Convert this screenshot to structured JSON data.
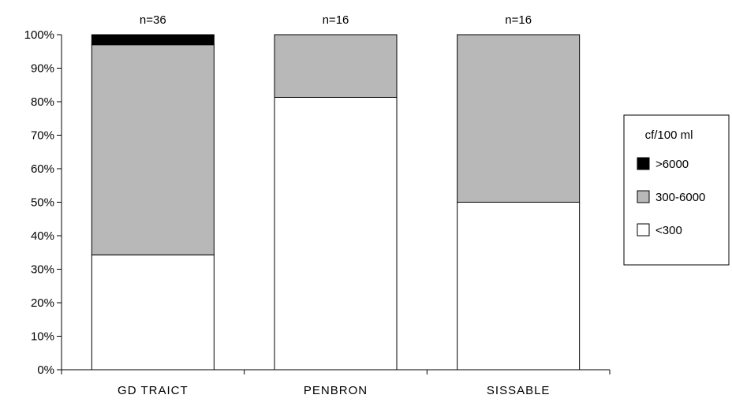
{
  "chart_data": {
    "type": "bar",
    "stacked": true,
    "percent": true,
    "categories": [
      "GD TRAICT",
      "PENBRON",
      "SISSABLE"
    ],
    "n_labels": [
      "n=36",
      "n=16",
      "n=16"
    ],
    "series": [
      {
        "name": "<300",
        "values": [
          34.3,
          81.3,
          50
        ],
        "color": "#ffffff"
      },
      {
        "name": "300-6000",
        "values": [
          62.7,
          18.7,
          50
        ],
        "color": "#b8b8b8"
      },
      {
        "name": ">6000",
        "values": [
          3,
          0,
          0
        ],
        "color": "#000000"
      }
    ],
    "yticks": [
      "0%",
      "10%",
      "20%",
      "30%",
      "40%",
      "50%",
      "60%",
      "70%",
      "80%",
      "90%",
      "100%"
    ],
    "ylim": [
      0,
      100
    ],
    "legend": {
      "title": "cf/100 ml",
      "position": "right",
      "items": [
        {
          "label": ">6000",
          "color": "#000000"
        },
        {
          "label": "300-6000",
          "color": "#b8b8b8"
        },
        {
          "label": "<300",
          "color": "#ffffff"
        }
      ]
    },
    "grid": false
  }
}
